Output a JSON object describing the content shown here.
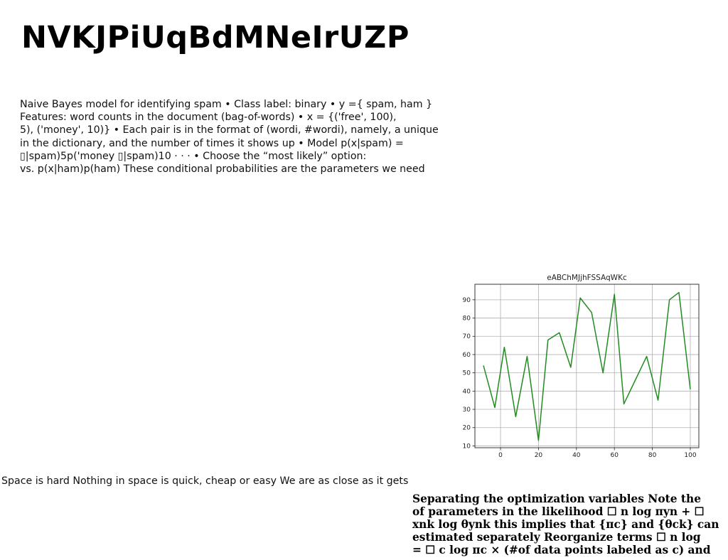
{
  "title": "NVKJPiUqBdMNeIrUZP",
  "paragraph": {
    "lines": [
      "Naive Bayes model for identifying spam • Class label: binary • y ={ spam, ham }",
      "Features: word counts in the document (bag-of-words) • x = {('free', 100),",
      "5), ('money', 10)} • Each pair is in the format of (wordi, #wordi), namely, a unique",
      "in the dictionary, and the number of times it shows up • Model p(x|spam) =",
      "▯|spam)5p('money ▯|spam)10 · · · • Choose the “most likely” option:",
      "vs. p(x|ham)p(ham) These conditional probabilities are the parameters we need"
    ]
  },
  "space_text": "Space is hard Nothing in space is quick, cheap or easy We are as close as it gets",
  "bold_block": {
    "lines": [
      "Separating the optimization variables Note the",
      "of parameters in the likelihood ☐ n log πyn + ☐",
      "xnk log θynk this implies that {πc} and {θck} can",
      "estimated separately Reorganize terms ☐ n log",
      "= ☐ c log πc × (#of data points labeled as c) and"
    ]
  },
  "chart_data": {
    "type": "line",
    "title": "eABChMJjhFSSAqWKc",
    "xlabel": "",
    "ylabel": "",
    "x": [
      -9,
      -3,
      2,
      8,
      14,
      20,
      25,
      31,
      37,
      42,
      48,
      54,
      60,
      65,
      77,
      83,
      89,
      94,
      100
    ],
    "series": [
      {
        "values": [
          54,
          31,
          64,
          26,
          59,
          13,
          68,
          72,
          53,
          91,
          83,
          50,
          93,
          33,
          59,
          35,
          90,
          94,
          41
        ],
        "color": "#228b22"
      }
    ],
    "xlim": [
      -13.5,
      104.5
    ],
    "ylim": [
      9,
      98.5
    ],
    "xticks": [
      0,
      20,
      40,
      60,
      80,
      100
    ],
    "yticks": [
      10,
      20,
      30,
      40,
      50,
      60,
      70,
      80,
      90
    ],
    "grid": true,
    "legend": "none"
  }
}
